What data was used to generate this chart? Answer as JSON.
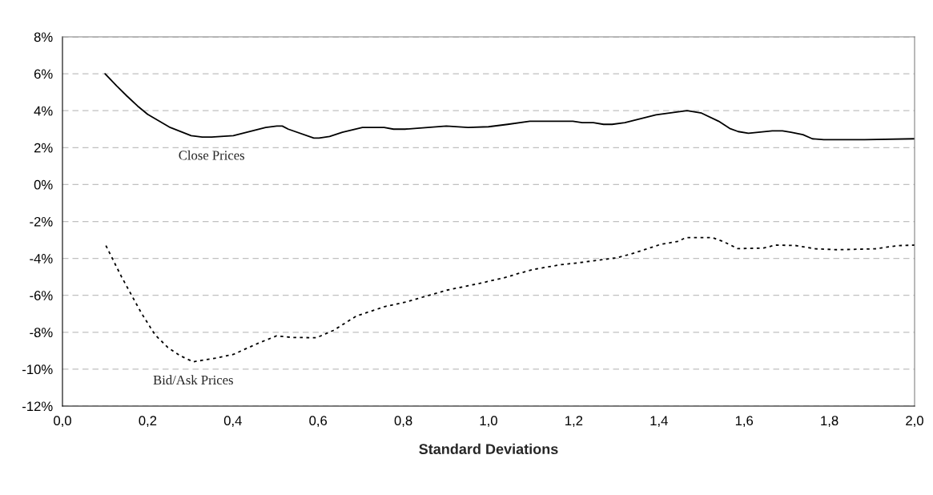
{
  "chart_data": {
    "type": "line",
    "xlabel": "Standard Deviations",
    "xlim": [
      0,
      2.0
    ],
    "xticks": [
      {
        "value": 0,
        "label": "0,0"
      },
      {
        "value": 0.2,
        "label": "0,2"
      },
      {
        "value": 0.4,
        "label": "0,4"
      },
      {
        "value": 0.6,
        "label": "0,6"
      },
      {
        "value": 0.8,
        "label": "0,8"
      },
      {
        "value": 1.0,
        "label": "1,0"
      },
      {
        "value": 1.2,
        "label": "1,2"
      },
      {
        "value": 1.4,
        "label": "1,4"
      },
      {
        "value": 1.6,
        "label": "1,6"
      },
      {
        "value": 1.8,
        "label": "1,8"
      },
      {
        "value": 2.0,
        "label": "2,0"
      }
    ],
    "ylim": [
      -12,
      8
    ],
    "yticks": [
      {
        "value": -12,
        "label": "-12%"
      },
      {
        "value": -10,
        "label": "-10%"
      },
      {
        "value": -8,
        "label": "-8%"
      },
      {
        "value": -6,
        "label": "-6%"
      },
      {
        "value": -4,
        "label": "-4%"
      },
      {
        "value": -2,
        "label": "-2%"
      },
      {
        "value": 0,
        "label": "0%"
      },
      {
        "value": 2,
        "label": "2%"
      },
      {
        "value": 4,
        "label": "4%"
      },
      {
        "value": 6,
        "label": "6%"
      },
      {
        "value": 8,
        "label": "8%"
      }
    ],
    "grid": "y",
    "legend": false,
    "marker": "none",
    "series": [
      {
        "name": "Close Prices",
        "color": "#000000",
        "line_style": "solid",
        "x": [
          0.1,
          0.127,
          0.151,
          0.176,
          0.2,
          0.253,
          0.302,
          0.328,
          0.35,
          0.401,
          0.477,
          0.503,
          0.516,
          0.53,
          0.59,
          0.602,
          0.627,
          0.657,
          0.704,
          0.755,
          0.777,
          0.804,
          0.901,
          0.952,
          1.0,
          1.045,
          1.097,
          1.198,
          1.22,
          1.246,
          1.27,
          1.29,
          1.32,
          1.393,
          1.466,
          1.5,
          1.54,
          1.566,
          1.586,
          1.61,
          1.666,
          1.69,
          1.71,
          1.738,
          1.76,
          1.787,
          1.883,
          2.0
        ],
        "values": [
          6.0,
          5.35,
          4.8,
          4.26,
          3.8,
          3.09,
          2.65,
          2.57,
          2.57,
          2.65,
          3.09,
          3.17,
          3.17,
          3.0,
          2.52,
          2.52,
          2.6,
          2.83,
          3.09,
          3.09,
          3.0,
          3.0,
          3.17,
          3.09,
          3.13,
          3.26,
          3.43,
          3.43,
          3.35,
          3.35,
          3.26,
          3.26,
          3.35,
          3.78,
          4.0,
          3.87,
          3.43,
          3.04,
          2.87,
          2.78,
          2.91,
          2.91,
          2.83,
          2.7,
          2.48,
          2.43,
          2.43,
          2.48
        ]
      },
      {
        "name": "Bid/Ask Prices",
        "color": "#000000",
        "line_style": "dotted",
        "x": [
          0.102,
          0.138,
          0.16,
          0.185,
          0.217,
          0.247,
          0.277,
          0.307,
          0.365,
          0.401,
          0.459,
          0.502,
          0.539,
          0.596,
          0.636,
          0.69,
          0.758,
          0.805,
          0.845,
          0.902,
          0.98,
          1.045,
          1.067,
          1.105,
          1.169,
          1.203,
          1.25,
          1.303,
          1.343,
          1.404,
          1.444,
          1.464,
          1.525,
          1.552,
          1.585,
          1.646,
          1.673,
          1.72,
          1.767,
          1.82,
          1.908,
          1.96,
          2.0
        ],
        "values": [
          -3.31,
          -4.97,
          -5.9,
          -6.95,
          -8.13,
          -8.82,
          -9.28,
          -9.6,
          -9.38,
          -9.2,
          -8.6,
          -8.2,
          -8.28,
          -8.3,
          -7.9,
          -7.12,
          -6.6,
          -6.37,
          -6.1,
          -5.72,
          -5.35,
          -5.0,
          -4.84,
          -4.6,
          -4.34,
          -4.26,
          -4.12,
          -3.96,
          -3.7,
          -3.24,
          -3.08,
          -2.87,
          -2.87,
          -3.1,
          -3.47,
          -3.44,
          -3.28,
          -3.3,
          -3.48,
          -3.53,
          -3.48,
          -3.31,
          -3.28
        ]
      }
    ]
  }
}
